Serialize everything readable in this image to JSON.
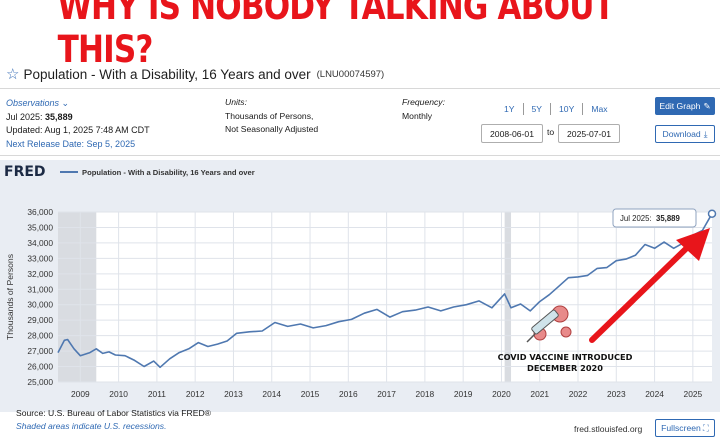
{
  "headline": "WHY IS NOBODY TALKING ABOUT THIS?",
  "series": {
    "title": "Population - With a Disability, 16 Years and over",
    "id": "(LNU00074597)"
  },
  "observations": {
    "label": "Observations",
    "latest_prefix": "Jul 2025:",
    "latest_value": "35,889",
    "updated": "Updated: Aug 1, 2025 7:48 AM CDT",
    "next_release": "Next Release Date: Sep 5, 2025"
  },
  "units": {
    "label": "Units:",
    "line1": "Thousands of Persons,",
    "line2": "Not Seasonally Adjusted"
  },
  "frequency": {
    "label": "Frequency:",
    "value": "Monthly"
  },
  "ranges": [
    "1Y",
    "5Y",
    "10Y",
    "Max"
  ],
  "date_range": {
    "start": "2008-06-01",
    "to": "to",
    "end": "2025-07-01"
  },
  "buttons": {
    "edit": "Edit Graph",
    "download": "Download",
    "fullscreen": "Fullscreen"
  },
  "footer": {
    "source": "Source: U.S. Bureau of Labor Statistics via FRED®",
    "shaded": "Shaded areas indicate U.S. recessions.",
    "site": "fred.stlouisfed.org"
  },
  "colors": {
    "headline": "#e8151b",
    "line": "#4f78b0",
    "arrow": "#e8151b",
    "accent": "#2f69b3",
    "recession": "#d9dce1"
  },
  "chart_data": {
    "type": "line",
    "logo": "FRED",
    "legend": "Population - With a Disability, 16 Years and over",
    "ylabel": "Thousands of Persons",
    "xlabel": "",
    "ylim": [
      25000,
      36000
    ],
    "yticks": [
      25000,
      26000,
      27000,
      28000,
      29000,
      30000,
      31000,
      32000,
      33000,
      34000,
      35000,
      36000
    ],
    "ytick_labels": [
      "25,000",
      "26,000",
      "27,000",
      "28,000",
      "29,000",
      "30,000",
      "31,000",
      "32,000",
      "33,000",
      "34,000",
      "35,000",
      "36,000"
    ],
    "xlim": [
      "2008-06",
      "2025-07"
    ],
    "xticks": [
      "2009",
      "2010",
      "2011",
      "2012",
      "2013",
      "2014",
      "2015",
      "2016",
      "2017",
      "2018",
      "2019",
      "2020",
      "2021",
      "2022",
      "2023",
      "2024",
      "2025"
    ],
    "grid": true,
    "recessions": [
      [
        "2008-06",
        "2009-06"
      ],
      [
        "2020-02",
        "2020-04"
      ]
    ],
    "tooltip": {
      "label": "Jul 2025:",
      "value": "35,889",
      "x": "2025-07",
      "y": 35889
    },
    "annotation_text": [
      "COVID VACCINE INTRODUCED",
      "DECEMBER 2020"
    ],
    "series": [
      {
        "name": "Population - With a Disability, 16 Years and over",
        "points": [
          [
            "2008-06",
            26900
          ],
          [
            "2008-08",
            27700
          ],
          [
            "2008-09",
            27750
          ],
          [
            "2008-11",
            27150
          ],
          [
            "2009-01",
            26700
          ],
          [
            "2009-04",
            26900
          ],
          [
            "2009-06",
            27150
          ],
          [
            "2009-08",
            26850
          ],
          [
            "2009-10",
            26950
          ],
          [
            "2009-12",
            26750
          ],
          [
            "2010-03",
            26700
          ],
          [
            "2010-06",
            26400
          ],
          [
            "2010-09",
            26000
          ],
          [
            "2010-12",
            26350
          ],
          [
            "2011-02",
            25950
          ],
          [
            "2011-05",
            26500
          ],
          [
            "2011-08",
            26900
          ],
          [
            "2011-11",
            27150
          ],
          [
            "2012-02",
            27550
          ],
          [
            "2012-05",
            27300
          ],
          [
            "2012-08",
            27450
          ],
          [
            "2012-11",
            27650
          ],
          [
            "2013-02",
            28150
          ],
          [
            "2013-06",
            28250
          ],
          [
            "2013-10",
            28300
          ],
          [
            "2014-02",
            28850
          ],
          [
            "2014-06",
            28600
          ],
          [
            "2014-10",
            28750
          ],
          [
            "2015-02",
            28500
          ],
          [
            "2015-06",
            28650
          ],
          [
            "2015-10",
            28900
          ],
          [
            "2016-02",
            29050
          ],
          [
            "2016-06",
            29450
          ],
          [
            "2016-10",
            29700
          ],
          [
            "2017-02",
            29200
          ],
          [
            "2017-06",
            29550
          ],
          [
            "2017-10",
            29650
          ],
          [
            "2018-02",
            29850
          ],
          [
            "2018-06",
            29600
          ],
          [
            "2018-10",
            29850
          ],
          [
            "2019-02",
            30000
          ],
          [
            "2019-06",
            30250
          ],
          [
            "2019-10",
            29800
          ],
          [
            "2020-02",
            30700
          ],
          [
            "2020-04",
            29800
          ],
          [
            "2020-07",
            30050
          ],
          [
            "2020-10",
            29600
          ],
          [
            "2021-01",
            30200
          ],
          [
            "2021-04",
            30650
          ],
          [
            "2021-07",
            31200
          ],
          [
            "2021-10",
            31750
          ],
          [
            "2022-01",
            31800
          ],
          [
            "2022-04",
            31900
          ],
          [
            "2022-07",
            32350
          ],
          [
            "2022-10",
            32400
          ],
          [
            "2023-01",
            32850
          ],
          [
            "2023-04",
            32950
          ],
          [
            "2023-07",
            33200
          ],
          [
            "2023-10",
            33900
          ],
          [
            "2024-01",
            33650
          ],
          [
            "2024-04",
            34050
          ],
          [
            "2024-07",
            33650
          ],
          [
            "2024-10",
            34000
          ],
          [
            "2025-01",
            34500
          ],
          [
            "2025-04",
            34800
          ],
          [
            "2025-07",
            35889
          ]
        ]
      }
    ]
  }
}
